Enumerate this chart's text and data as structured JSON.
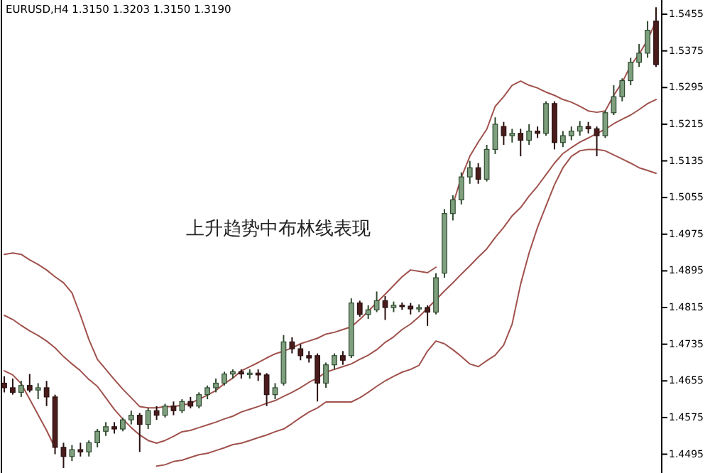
{
  "chart_data": {
    "type": "candlestick",
    "title": "EURUSD,H4  1.3150 1.3203 1.3150 1.3190",
    "annotations": [
      "上升趋势中布林线表现"
    ],
    "categories": [
      null,
      null,
      null,
      null,
      null,
      null,
      null,
      null,
      null,
      null,
      null,
      null,
      null,
      null,
      null,
      null,
      null,
      null,
      null,
      null,
      null,
      null,
      null,
      null,
      null,
      null,
      null,
      null,
      null,
      null,
      null,
      null,
      null,
      null,
      null,
      null,
      null,
      null,
      null,
      null,
      null,
      null,
      null,
      null,
      null,
      null,
      null,
      null,
      null,
      null,
      null,
      null,
      null,
      null,
      null,
      null,
      null,
      null,
      null,
      null,
      null,
      null,
      null,
      null,
      null,
      null,
      null,
      null,
      null,
      null,
      null,
      null,
      null,
      null,
      null,
      null,
      null,
      null
    ],
    "ohlc": [
      [
        1.465,
        1.4665,
        1.463,
        1.464
      ],
      [
        1.464,
        1.466,
        1.4625,
        1.463
      ],
      [
        1.463,
        1.4655,
        1.462,
        1.4645
      ],
      [
        1.4645,
        1.467,
        1.463,
        1.4635
      ],
      [
        1.4635,
        1.465,
        1.4615,
        1.464
      ],
      [
        1.464,
        1.4655,
        1.46,
        1.462
      ],
      [
        1.462,
        1.4625,
        1.4495,
        1.451
      ],
      [
        1.451,
        1.452,
        1.4465,
        1.449
      ],
      [
        1.449,
        1.4515,
        1.448,
        1.4505
      ],
      [
        1.4505,
        1.452,
        1.449,
        1.45
      ],
      [
        1.45,
        1.4525,
        1.449,
        1.452
      ],
      [
        1.452,
        1.455,
        1.451,
        1.4545
      ],
      [
        1.4545,
        1.4565,
        1.4535,
        1.4555
      ],
      [
        1.4555,
        1.4565,
        1.454,
        1.455
      ],
      [
        1.455,
        1.4575,
        1.4545,
        1.457
      ],
      [
        1.457,
        1.459,
        1.456,
        1.458
      ],
      [
        1.458,
        1.4585,
        1.45,
        1.456
      ],
      [
        1.456,
        1.4595,
        1.455,
        1.459
      ],
      [
        1.459,
        1.46,
        1.457,
        1.458
      ],
      [
        1.458,
        1.4605,
        1.4575,
        1.46
      ],
      [
        1.46,
        1.461,
        1.458,
        1.459
      ],
      [
        1.459,
        1.4615,
        1.4585,
        1.461
      ],
      [
        1.461,
        1.462,
        1.4595,
        1.46
      ],
      [
        1.46,
        1.463,
        1.4595,
        1.4625
      ],
      [
        1.4625,
        1.4645,
        1.4615,
        1.464
      ],
      [
        1.464,
        1.466,
        1.463,
        1.465
      ],
      [
        1.465,
        1.4675,
        1.4645,
        1.467
      ],
      [
        1.467,
        1.468,
        1.466,
        1.4675
      ],
      [
        1.4675,
        1.468,
        1.466,
        1.467
      ],
      [
        1.467,
        1.468,
        1.466,
        1.4672
      ],
      [
        1.4672,
        1.468,
        1.4655,
        1.4668
      ],
      [
        1.4668,
        1.4672,
        1.46,
        1.4625
      ],
      [
        1.4625,
        1.465,
        1.4615,
        1.464
      ],
      [
        1.465,
        1.4755,
        1.4645,
        1.474
      ],
      [
        1.474,
        1.475,
        1.4715,
        1.4725
      ],
      [
        1.4725,
        1.4735,
        1.47,
        1.471
      ],
      [
        1.471,
        1.472,
        1.4695,
        1.4705
      ],
      [
        1.471,
        1.4715,
        1.461,
        1.465
      ],
      [
        1.465,
        1.4695,
        1.464,
        1.469
      ],
      [
        1.469,
        1.4715,
        1.468,
        1.471
      ],
      [
        1.471,
        1.472,
        1.469,
        1.47
      ],
      [
        1.471,
        1.4835,
        1.4705,
        1.4825
      ],
      [
        1.4825,
        1.483,
        1.4795,
        1.48
      ],
      [
        1.48,
        1.482,
        1.479,
        1.481
      ],
      [
        1.481,
        1.485,
        1.4805,
        1.483
      ],
      [
        1.483,
        1.484,
        1.4788,
        1.4815
      ],
      [
        1.4815,
        1.4828,
        1.4805,
        1.482
      ],
      [
        1.482,
        1.4826,
        1.481,
        1.4818
      ],
      [
        1.4818,
        1.4825,
        1.48,
        1.4812
      ],
      [
        1.4812,
        1.4822,
        1.4805,
        1.4815
      ],
      [
        1.4815,
        1.482,
        1.4775,
        1.4805
      ],
      [
        1.4805,
        1.489,
        1.48,
        1.488
      ],
      [
        1.489,
        1.503,
        1.488,
        1.502
      ],
      [
        1.502,
        1.506,
        1.5005,
        1.505
      ],
      [
        1.505,
        1.511,
        1.504,
        1.51
      ],
      [
        1.51,
        1.5135,
        1.5085,
        1.512
      ],
      [
        1.512,
        1.513,
        1.5085,
        1.5095
      ],
      [
        1.5095,
        1.517,
        1.509,
        1.516
      ],
      [
        1.516,
        1.523,
        1.515,
        1.5215
      ],
      [
        1.521,
        1.522,
        1.517,
        1.519
      ],
      [
        1.519,
        1.5205,
        1.5175,
        1.5195
      ],
      [
        1.5195,
        1.5205,
        1.5145,
        1.518
      ],
      [
        1.518,
        1.5215,
        1.517,
        1.52
      ],
      [
        1.52,
        1.521,
        1.5185,
        1.5195
      ],
      [
        1.5195,
        1.5265,
        1.519,
        1.526
      ],
      [
        1.526,
        1.5265,
        1.516,
        1.5175
      ],
      [
        1.5175,
        1.52,
        1.5165,
        1.519
      ],
      [
        1.519,
        1.521,
        1.518,
        1.52
      ],
      [
        1.52,
        1.5222,
        1.519,
        1.521
      ],
      [
        1.521,
        1.522,
        1.5195,
        1.5205
      ],
      [
        1.5205,
        1.521,
        1.5145,
        1.519
      ],
      [
        1.519,
        1.5245,
        1.5185,
        1.524
      ],
      [
        1.524,
        1.53,
        1.5235,
        1.5275
      ],
      [
        1.5275,
        1.5315,
        1.5265,
        1.531
      ],
      [
        1.531,
        1.536,
        1.53,
        1.535
      ],
      [
        1.535,
        1.539,
        1.534,
        1.537
      ],
      [
        1.537,
        1.544,
        1.536,
        1.542
      ],
      [
        1.544,
        1.547,
        1.534,
        1.5345
      ]
    ],
    "series": [
      {
        "type": "line",
        "color": "#a0524d",
        "values": [
          1.4931,
          1.4934,
          1.4931,
          1.4919,
          1.4909,
          1.4897,
          1.4882,
          1.4869,
          1.4847,
          1.4798,
          1.4745,
          1.4702,
          1.468,
          1.4658,
          1.4637,
          1.4618,
          1.4599,
          1.4596,
          1.4596,
          1.4599,
          1.4599,
          1.4602,
          1.4606,
          1.4615,
          1.4624,
          1.4634,
          1.4649,
          1.4661,
          1.4677,
          1.4686,
          1.4695,
          1.4705,
          1.4714,
          1.472,
          1.4727,
          1.4736,
          1.4742,
          1.4748,
          1.4757,
          1.4761,
          1.4767,
          1.4773,
          1.4789,
          1.4807,
          1.4826,
          1.4844,
          1.4863,
          1.4882,
          1.4897,
          1.4894,
          1.4891,
          1.4903,
          null,
          1.504,
          1.5099,
          1.5145,
          1.5176,
          1.5204,
          1.5254,
          1.5275,
          1.53,
          1.5309,
          1.53,
          1.5294,
          1.5285,
          1.5278,
          1.5269,
          1.5263,
          1.5254,
          1.5244,
          1.5241,
          1.5244,
          1.5278,
          1.5306,
          1.5343,
          1.5368,
          1.5399,
          1.544
        ]
      },
      {
        "type": "line",
        "color": "#a0524d",
        "values": [
          1.4798,
          1.4789,
          1.4776,
          1.4764,
          1.4754,
          1.4742,
          1.4727,
          1.4708,
          1.4692,
          1.4677,
          1.4658,
          1.4643,
          1.4618,
          1.4593,
          1.4572,
          1.4553,
          1.4537,
          1.4525,
          1.4519,
          1.4525,
          1.4534,
          1.4544,
          1.4547,
          1.4553,
          1.4559,
          1.4565,
          1.4572,
          1.4578,
          1.4587,
          1.4593,
          1.4599,
          1.4606,
          1.4612,
          1.4621,
          1.463,
          1.464,
          1.4652,
          1.4661,
          1.4674,
          1.468,
          1.4686,
          1.4692,
          1.4702,
          1.4711,
          1.4723,
          1.4739,
          1.4751,
          1.4767,
          1.4779,
          1.4795,
          1.4813,
          1.4832,
          1.4851,
          1.4869,
          1.4888,
          1.4906,
          1.4925,
          1.4943,
          1.4968,
          1.499,
          1.5015,
          1.5033,
          1.5058,
          1.508,
          1.5105,
          1.513,
          1.5151,
          1.5164,
          1.5176,
          1.5185,
          1.5195,
          1.5204,
          1.5216,
          1.5226,
          1.5235,
          1.5247,
          1.526,
          1.5269
        ]
      },
      {
        "type": "line",
        "color": "#a0524d",
        "values": [
          1.4677,
          1.4668,
          1.4649,
          1.4615,
          1.4581,
          1.4547,
          1.4509,
          null,
          null,
          null,
          null,
          null,
          null,
          null,
          null,
          null,
          null,
          null,
          1.4469,
          1.4472,
          1.4479,
          1.4482,
          1.4488,
          1.4494,
          1.4497,
          1.4503,
          1.4509,
          1.4516,
          1.4519,
          1.4525,
          1.4531,
          1.4537,
          1.4544,
          1.455,
          1.4562,
          1.4575,
          1.4587,
          1.4596,
          1.4609,
          1.4609,
          1.4609,
          1.4609,
          1.4618,
          1.463,
          1.4643,
          1.4655,
          1.4665,
          1.4674,
          1.468,
          1.4689,
          1.472,
          1.4742,
          1.4736,
          1.4723,
          1.4708,
          1.4692,
          1.4686,
          1.4699,
          1.4711,
          1.4733,
          1.4779,
          1.4866,
          1.4934,
          1.499,
          1.5037,
          1.5083,
          1.512,
          1.5145,
          1.5157,
          1.516,
          1.516,
          1.5157,
          1.5148,
          1.5139,
          1.513,
          1.512,
          1.5114,
          1.5108
        ]
      }
    ],
    "ylim": [
      1.4454,
      1.5486
    ],
    "yticks": [
      1.5455,
      1.5375,
      1.5295,
      1.5215,
      1.5135,
      1.5055,
      1.4975,
      1.4895,
      1.4815,
      1.4735,
      1.4655,
      1.4575,
      1.4495
    ],
    "tick_labels": "y"
  }
}
